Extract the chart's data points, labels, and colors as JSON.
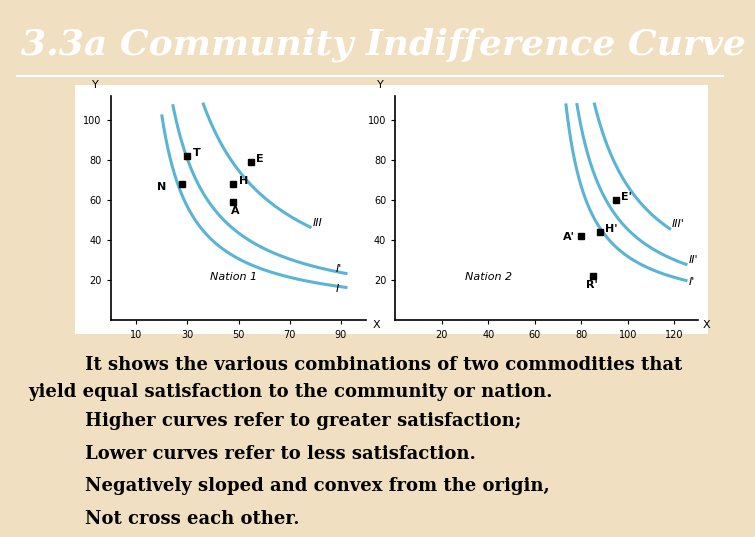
{
  "background_color": "#f0dfc0",
  "title": "3.3a Community Indifference Curve",
  "title_bg": "#5bc8f0",
  "title_color": "white",
  "title_fontsize": 26,
  "body_text1_indent": "    It shows the various combinations of two commodities that",
  "body_text1_cont": "yield equal satisfaction to the community or nation.",
  "body_text2": "    Higher curves refer to greater satisfaction;",
  "body_text3": "    Lower curves refer to less satisfaction.",
  "body_text4": "    Negatively sloped and convex from the origin,",
  "body_text5": "    Not cross each other.",
  "curve_color": "#5ab4d6",
  "nation1_label": "Nation 1",
  "nation2_label": "Nation 2",
  "text_fontsize": 12,
  "body_fontsize": 13
}
